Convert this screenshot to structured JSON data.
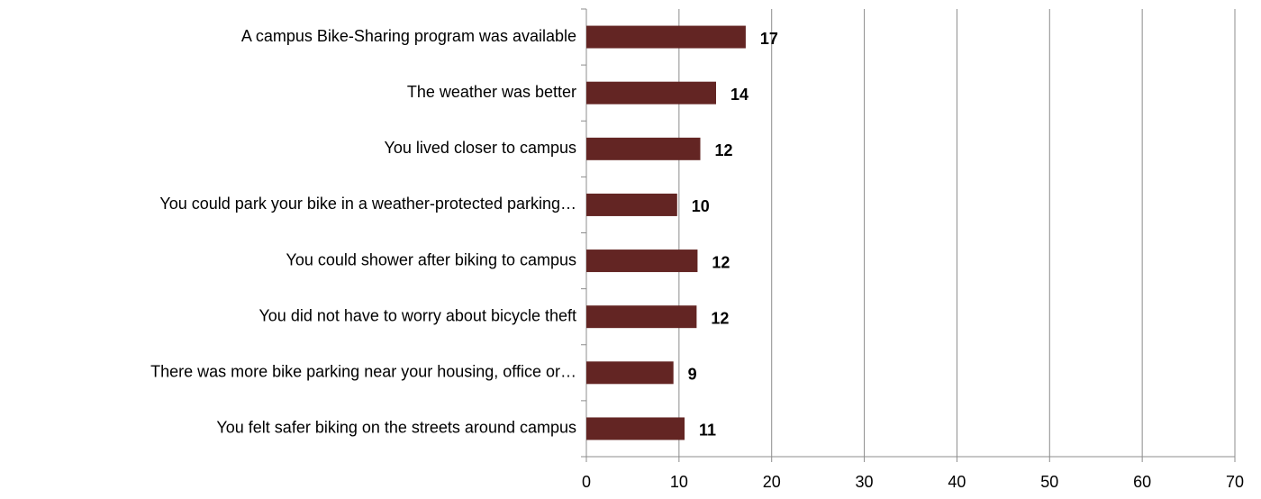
{
  "chart_data": {
    "type": "barh",
    "categories": [
      "A campus Bike-Sharing program was available",
      "The weather was better",
      "You lived closer to campus",
      "You could park your bike in a weather-protected parking…",
      "You could shower after biking to campus",
      "You did not have to worry about bicycle theft",
      "There was more bike parking near your housing, office or…",
      "You felt safer biking on the streets around campus"
    ],
    "values": [
      17.2,
      14,
      12.3,
      9.8,
      12,
      11.9,
      9.4,
      10.6
    ],
    "value_labels": [
      "17",
      "14",
      "12",
      "10",
      "12",
      "12",
      "9",
      "11"
    ],
    "color": "#632523",
    "xlim": [
      0,
      70
    ],
    "xticks": [
      0,
      10,
      20,
      30,
      40,
      50,
      60,
      70
    ],
    "grid": true
  }
}
